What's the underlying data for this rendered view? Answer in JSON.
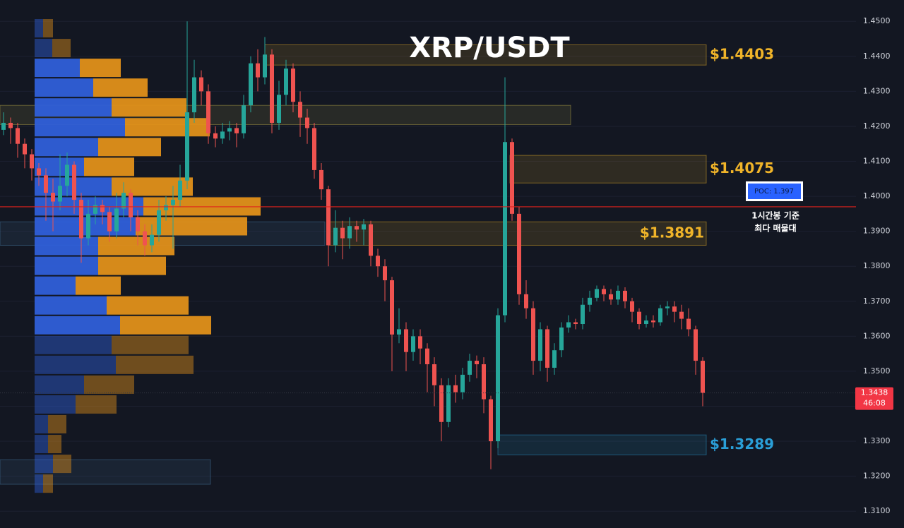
{
  "chart_data": {
    "type": "candlestick",
    "title": "XRP/USDT",
    "ylim": [
      1.3052,
      1.4561
    ],
    "yticks": [
      {
        "value": 1.31,
        "label": "1.3100"
      },
      {
        "value": 1.32,
        "label": "1.3200"
      },
      {
        "value": 1.33,
        "label": "1.3300"
      },
      {
        "value": 1.34,
        "label": "1.3400"
      },
      {
        "value": 1.35,
        "label": "1.3500"
      },
      {
        "value": 1.36,
        "label": "1.3600"
      },
      {
        "value": 1.37,
        "label": "1.3700"
      },
      {
        "value": 1.38,
        "label": "1.3800"
      },
      {
        "value": 1.39,
        "label": "1.3900"
      },
      {
        "value": 1.4,
        "label": "1.4000"
      },
      {
        "value": 1.41,
        "label": "1.4100"
      },
      {
        "value": 1.42,
        "label": "1.4200"
      },
      {
        "value": 1.43,
        "label": "1.4300"
      },
      {
        "value": 1.44,
        "label": "1.4400"
      },
      {
        "value": 1.45,
        "label": "1.4500"
      }
    ],
    "grid": true,
    "up_color": "#26a69a",
    "down_color": "#ef5350",
    "candles": {
      "open": [
        1.419,
        1.421,
        1.4195,
        1.415,
        1.412,
        1.408,
        1.406,
        1.401,
        1.3985,
        1.403,
        1.409,
        1.399,
        1.388,
        1.395,
        1.3975,
        1.3955,
        1.39,
        1.3965,
        1.401,
        1.394,
        1.39,
        1.386,
        1.389,
        1.396,
        1.3975,
        1.399,
        1.4045,
        1.424,
        1.434,
        1.43,
        1.418,
        1.4165,
        1.4185,
        1.4195,
        1.418,
        1.426,
        1.438,
        1.434,
        1.4405,
        1.421,
        1.429,
        1.4365,
        1.427,
        1.4225,
        1.4195,
        1.4075,
        1.402,
        1.386,
        1.391,
        1.388,
        1.3915,
        1.3905,
        1.392,
        1.383,
        1.38,
        1.376,
        1.3605,
        1.362,
        1.3555,
        1.36,
        1.3565,
        1.352,
        1.346,
        1.3355,
        1.346,
        1.344,
        1.349,
        1.353,
        1.352,
        1.342,
        1.33,
        1.366,
        1.4155,
        1.395,
        1.372,
        1.368,
        1.353,
        1.362,
        1.351,
        1.356,
        1.3625,
        1.364,
        1.3635,
        1.369,
        1.371,
        1.3735,
        1.372,
        1.3705,
        1.373,
        1.37,
        1.367,
        1.3635,
        1.3645,
        1.364,
        1.368,
        1.3685,
        1.367,
        1.365,
        1.362,
        1.353
      ],
      "high": [
        1.424,
        1.4225,
        1.421,
        1.4165,
        1.4135,
        1.4095,
        1.408,
        1.405,
        1.412,
        1.4125,
        1.41,
        1.401,
        1.399,
        1.4,
        1.399,
        1.397,
        1.401,
        1.404,
        1.402,
        1.396,
        1.392,
        1.392,
        1.399,
        1.4,
        1.403,
        1.409,
        1.45,
        1.439,
        1.436,
        1.432,
        1.42,
        1.421,
        1.4215,
        1.421,
        1.429,
        1.44,
        1.442,
        1.4455,
        1.442,
        1.433,
        1.439,
        1.438,
        1.43,
        1.425,
        1.421,
        1.4095,
        1.403,
        1.396,
        1.393,
        1.394,
        1.393,
        1.3935,
        1.393,
        1.385,
        1.382,
        1.377,
        1.368,
        1.364,
        1.362,
        1.362,
        1.358,
        1.354,
        1.348,
        1.348,
        1.349,
        1.351,
        1.355,
        1.3545,
        1.354,
        1.343,
        1.368,
        1.434,
        1.4165,
        1.397,
        1.376,
        1.37,
        1.364,
        1.363,
        1.358,
        1.364,
        1.366,
        1.365,
        1.371,
        1.373,
        1.3745,
        1.3745,
        1.3735,
        1.3745,
        1.374,
        1.371,
        1.368,
        1.366,
        1.366,
        1.369,
        1.37,
        1.37,
        1.369,
        1.368,
        1.363,
        1.354
      ],
      "low": [
        1.4175,
        1.415,
        1.411,
        1.408,
        1.4045,
        1.403,
        1.393,
        1.39,
        1.396,
        1.4,
        1.395,
        1.381,
        1.386,
        1.392,
        1.392,
        1.387,
        1.388,
        1.394,
        1.39,
        1.386,
        1.383,
        1.384,
        1.387,
        1.393,
        1.385,
        1.397,
        1.402,
        1.421,
        1.426,
        1.415,
        1.414,
        1.415,
        1.416,
        1.414,
        1.4165,
        1.424,
        1.43,
        1.432,
        1.418,
        1.419,
        1.426,
        1.424,
        1.417,
        1.415,
        1.405,
        1.399,
        1.38,
        1.384,
        1.382,
        1.385,
        1.387,
        1.386,
        1.38,
        1.377,
        1.37,
        1.35,
        1.358,
        1.35,
        1.353,
        1.352,
        1.344,
        1.34,
        1.33,
        1.334,
        1.341,
        1.342,
        1.347,
        1.348,
        1.338,
        1.322,
        1.328,
        1.364,
        1.393,
        1.369,
        1.365,
        1.349,
        1.35,
        1.347,
        1.349,
        1.354,
        1.361,
        1.362,
        1.362,
        1.367,
        1.37,
        1.37,
        1.369,
        1.369,
        1.368,
        1.364,
        1.362,
        1.3625,
        1.3625,
        1.363,
        1.366,
        1.364,
        1.362,
        1.36,
        1.349,
        1.34
      ],
      "close": [
        1.421,
        1.4195,
        1.415,
        1.412,
        1.408,
        1.406,
        1.401,
        1.3985,
        1.403,
        1.409,
        1.399,
        1.388,
        1.395,
        1.3975,
        1.3955,
        1.39,
        1.3965,
        1.401,
        1.394,
        1.39,
        1.386,
        1.389,
        1.396,
        1.3975,
        1.399,
        1.4045,
        1.424,
        1.434,
        1.43,
        1.418,
        1.4165,
        1.4185,
        1.4195,
        1.418,
        1.426,
        1.438,
        1.434,
        1.4405,
        1.421,
        1.429,
        1.4365,
        1.427,
        1.4225,
        1.4195,
        1.4075,
        1.402,
        1.386,
        1.391,
        1.388,
        1.3915,
        1.3905,
        1.392,
        1.383,
        1.38,
        1.376,
        1.3605,
        1.362,
        1.3555,
        1.36,
        1.3565,
        1.352,
        1.346,
        1.3355,
        1.346,
        1.344,
        1.349,
        1.353,
        1.352,
        1.342,
        1.33,
        1.366,
        1.4155,
        1.395,
        1.372,
        1.368,
        1.353,
        1.362,
        1.351,
        1.356,
        1.3625,
        1.364,
        1.3635,
        1.369,
        1.371,
        1.3735,
        1.372,
        1.3705,
        1.373,
        1.37,
        1.367,
        1.3635,
        1.3645,
        1.364,
        1.368,
        1.3685,
        1.367,
        1.365,
        1.362,
        1.353,
        1.3438
      ]
    },
    "volume_profile": {
      "buy_color": "#2f5fd9",
      "sell_color": "#e0901a",
      "buy": [
        12,
        25,
        64,
        83,
        109,
        128,
        90,
        70,
        109,
        154,
        143,
        90,
        90,
        58,
        102,
        121,
        109,
        115,
        70,
        58,
        19,
        19,
        26,
        12
      ],
      "sell": [
        14,
        26,
        58,
        77,
        106,
        120,
        89,
        71,
        115,
        166,
        158,
        108,
        96,
        64,
        116,
        129,
        109,
        110,
        71,
        58,
        26,
        19,
        26,
        14
      ]
    },
    "zones": [
      {
        "low": 1.4375,
        "high": 1.4433,
        "label": "$1.4403",
        "color": "#f0b429"
      },
      {
        "low": 1.4205,
        "high": 1.426,
        "color": "#b8a84a"
      },
      {
        "low": 1.4038,
        "high": 1.4117,
        "label": "$1.4075",
        "color": "#f0b429"
      },
      {
        "low": 1.386,
        "high": 1.3927,
        "color": "#4a7fa8"
      },
      {
        "low": 1.386,
        "high": 1.3927,
        "label": "$1.3891",
        "color": "#f0b429"
      },
      {
        "low": 1.3261,
        "high": 1.3318,
        "label": "$1.3289",
        "color": "#2a9fd8"
      },
      {
        "low": 1.3177,
        "high": 1.3247,
        "color": "#4a7fa8"
      }
    ],
    "poc": {
      "value": 1.397,
      "label": "POC: 1.397",
      "color": "#e0211c",
      "note": [
        "1시간봉 기준",
        "최다 매물대"
      ]
    },
    "last_price": {
      "value": 1.3438,
      "countdown": "46:08",
      "color": "#f23645"
    }
  }
}
